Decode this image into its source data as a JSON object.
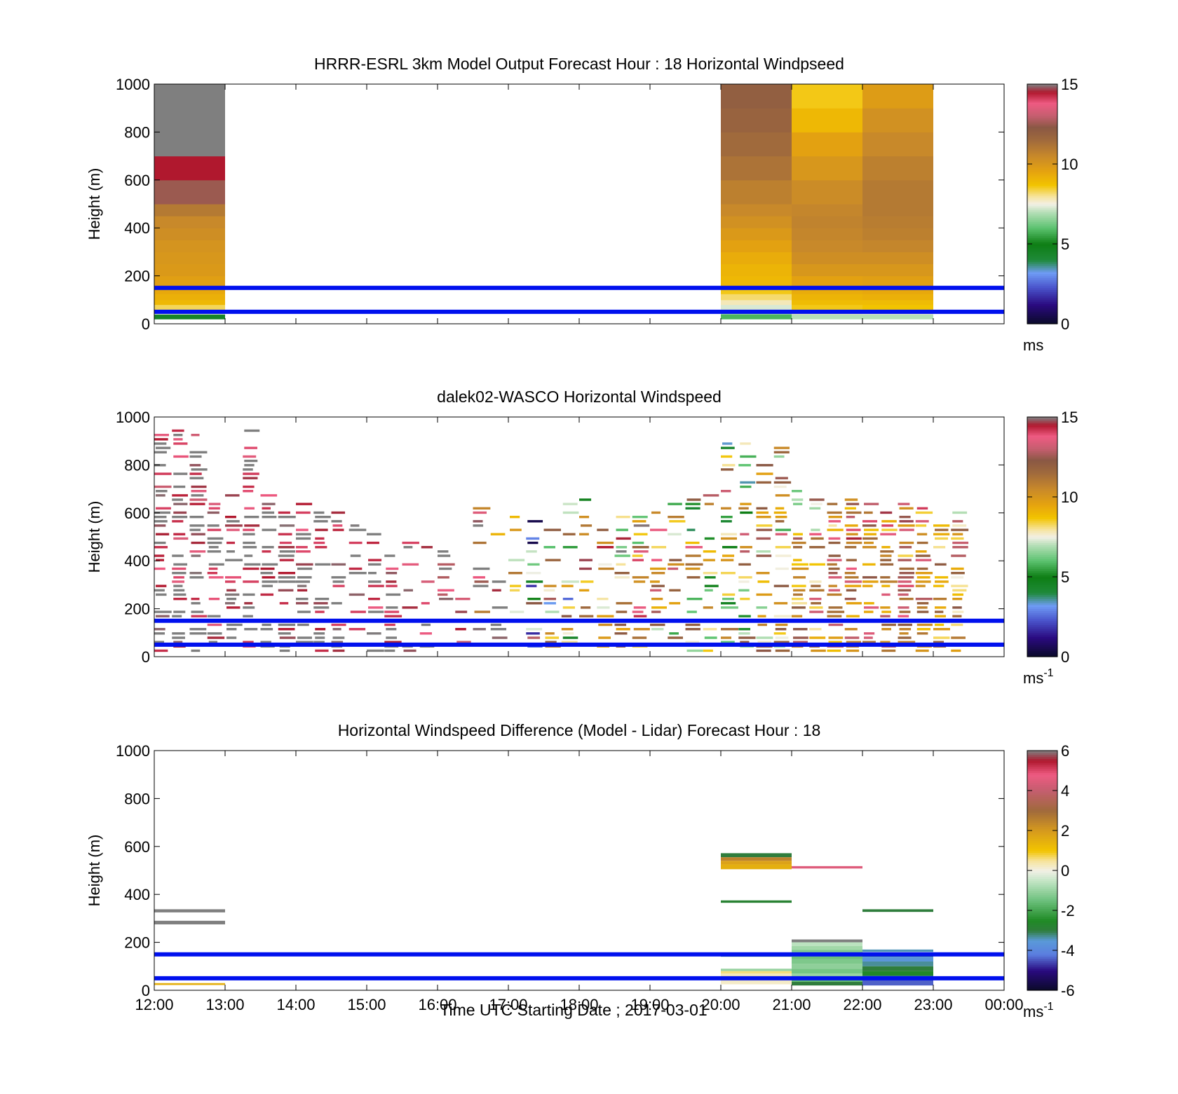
{
  "figure": {
    "xlabel": "Time UTC  Starting Date ; 2017-03-01",
    "x_tick_labels": [
      "12:00",
      "13:00",
      "14:00",
      "15:00",
      "16:00",
      "17:00",
      "18:00",
      "19:00",
      "20:00",
      "21:00",
      "22:00",
      "23:00",
      "00:00"
    ],
    "ylabel": "Height (m)",
    "y_tick_labels": [
      "0",
      "200",
      "400",
      "600",
      "800",
      "1000"
    ]
  },
  "chart_data": [
    {
      "type": "heatmap",
      "title": "HRRR-ESRL 3km Model Output   Forecast Hour : 18 Horizontal Windpseed",
      "ylabel": "Height (m)",
      "xlim": [
        0,
        12
      ],
      "ylim": [
        0,
        1000
      ],
      "colorbar": {
        "min": 0,
        "max": 15,
        "ticks": [
          "0",
          "5",
          "10",
          "15"
        ],
        "unit": "ms",
        "unit_sup": ""
      },
      "reference_lines": [
        {
          "height": 150,
          "color": "#0010ee"
        },
        {
          "height": 50,
          "color": "#0010ee"
        }
      ],
      "columns": [
        {
          "x0": 0,
          "x1": 1,
          "cells": [
            [
              20,
              40,
              4.5
            ],
            [
              40,
              60,
              7.5
            ],
            [
              60,
              80,
              8.3
            ],
            [
              80,
              100,
              9.0
            ],
            [
              100,
              125,
              9.2
            ],
            [
              125,
              150,
              9.4
            ],
            [
              150,
              200,
              9.7
            ],
            [
              200,
              250,
              9.9
            ],
            [
              250,
              300,
              10.0
            ],
            [
              300,
              350,
              10.1
            ],
            [
              350,
              400,
              10.3
            ],
            [
              400,
              450,
              10.5
            ],
            [
              450,
              500,
              11.0
            ],
            [
              500,
              600,
              12.5
            ],
            [
              600,
              700,
              14.5
            ],
            [
              700,
              1000,
              15.0
            ]
          ]
        },
        {
          "x0": 8,
          "x1": 9,
          "cells": [
            [
              20,
              40,
              5.8
            ],
            [
              40,
              60,
              6.8
            ],
            [
              60,
              80,
              7.3
            ],
            [
              80,
              100,
              7.8
            ],
            [
              100,
              125,
              8.2
            ],
            [
              125,
              150,
              8.6
            ],
            [
              150,
              200,
              9.0
            ],
            [
              200,
              250,
              9.1
            ],
            [
              250,
              300,
              9.3
            ],
            [
              300,
              350,
              9.6
            ],
            [
              350,
              400,
              9.9
            ],
            [
              400,
              450,
              10.2
            ],
            [
              450,
              500,
              10.5
            ],
            [
              500,
              600,
              10.8
            ],
            [
              600,
              700,
              11.2
            ],
            [
              700,
              800,
              11.5
            ],
            [
              800,
              900,
              11.8
            ],
            [
              900,
              1000,
              12.0
            ]
          ]
        },
        {
          "x0": 9,
          "x1": 10,
          "cells": [
            [
              20,
              40,
              7.0
            ],
            [
              40,
              60,
              7.7
            ],
            [
              60,
              80,
              8.6
            ],
            [
              80,
              100,
              8.9
            ],
            [
              100,
              125,
              9.1
            ],
            [
              125,
              150,
              9.3
            ],
            [
              150,
              200,
              9.6
            ],
            [
              200,
              250,
              10.0
            ],
            [
              250,
              300,
              10.3
            ],
            [
              300,
              350,
              10.5
            ],
            [
              350,
              400,
              10.6
            ],
            [
              400,
              450,
              10.7
            ],
            [
              450,
              500,
              10.6
            ],
            [
              500,
              600,
              10.4
            ],
            [
              600,
              700,
              10.0
            ],
            [
              700,
              800,
              9.6
            ],
            [
              800,
              900,
              9.0
            ],
            [
              900,
              1000,
              8.6
            ]
          ]
        },
        {
          "x0": 10,
          "x1": 11,
          "cells": [
            [
              20,
              40,
              7.0
            ],
            [
              40,
              60,
              7.6
            ],
            [
              60,
              80,
              8.7
            ],
            [
              80,
              100,
              8.9
            ],
            [
              100,
              125,
              9.2
            ],
            [
              125,
              150,
              9.4
            ],
            [
              150,
              200,
              9.7
            ],
            [
              200,
              250,
              10.0
            ],
            [
              250,
              300,
              10.3
            ],
            [
              300,
              350,
              10.6
            ],
            [
              350,
              400,
              10.8
            ],
            [
              400,
              450,
              10.9
            ],
            [
              450,
              500,
              11.0
            ],
            [
              500,
              600,
              11.0
            ],
            [
              600,
              700,
              10.8
            ],
            [
              700,
              800,
              10.5
            ],
            [
              800,
              900,
              10.2
            ],
            [
              900,
              1000,
              9.8
            ]
          ]
        }
      ]
    },
    {
      "type": "heatmap",
      "title": "dalek02-WASCO  Horizontal Windspeed",
      "ylabel": "Height (m)",
      "xlim": [
        0,
        12
      ],
      "ylim": [
        0,
        1000
      ],
      "colorbar": {
        "min": 0,
        "max": 15,
        "ticks": [
          "0",
          "5",
          "10",
          "15"
        ],
        "unit": "ms",
        "unit_sup": "-1"
      },
      "reference_lines": [
        {
          "height": 150,
          "color": "#0010ee"
        },
        {
          "height": 50,
          "color": "#0010ee"
        }
      ],
      "lidar_time_step": 0.25,
      "lidar_gate_height": 18,
      "lidar_columns": [
        {
          "coverage": 0.62,
          "top": 960,
          "speed": 15.0,
          "spread": 1.5
        },
        {
          "coverage": 0.58,
          "top": 950,
          "speed": 15.0,
          "spread": 1.5
        },
        {
          "coverage": 0.55,
          "top": 930,
          "speed": 15.0,
          "spread": 1.5
        },
        {
          "coverage": 0.52,
          "top": 640,
          "speed": 15.0,
          "spread": 1.5
        },
        {
          "coverage": 0.5,
          "top": 680,
          "speed": 15.0,
          "spread": 1.2
        },
        {
          "coverage": 0.5,
          "top": 990,
          "speed": 15.0,
          "spread": 1.2
        },
        {
          "coverage": 0.52,
          "top": 690,
          "speed": 15.0,
          "spread": 1.0
        },
        {
          "coverage": 0.52,
          "top": 680,
          "speed": 15.0,
          "spread": 1.0
        },
        {
          "coverage": 0.5,
          "top": 660,
          "speed": 15.0,
          "spread": 1.0
        },
        {
          "coverage": 0.48,
          "top": 640,
          "speed": 15.0,
          "spread": 1.0
        },
        {
          "coverage": 0.45,
          "top": 600,
          "speed": 15.0,
          "spread": 1.0
        },
        {
          "coverage": 0.42,
          "top": 560,
          "speed": 15.0,
          "spread": 1.0
        },
        {
          "coverage": 0.4,
          "top": 520,
          "speed": 15.0,
          "spread": 1.5
        },
        {
          "coverage": 0.38,
          "top": 500,
          "speed": 15.0,
          "spread": 1.5
        },
        {
          "coverage": 0.36,
          "top": 480,
          "speed": 15.0,
          "spread": 1.5
        },
        {
          "coverage": 0.35,
          "top": 460,
          "speed": 15.0,
          "spread": 2.0
        },
        {
          "coverage": 0.35,
          "top": 450,
          "speed": 14.5,
          "spread": 2.0
        },
        {
          "coverage": 0.34,
          "top": 440,
          "speed": 14.0,
          "spread": 2.5
        },
        {
          "coverage": 0.32,
          "top": 620,
          "speed": 13.5,
          "spread": 3.0
        },
        {
          "coverage": 0.32,
          "top": 600,
          "speed": 13.0,
          "spread": 3.5
        },
        {
          "coverage": 0.34,
          "top": 620,
          "speed": 8.0,
          "spread": 6.0
        },
        {
          "coverage": 0.34,
          "top": 640,
          "speed": 7.0,
          "spread": 6.0
        },
        {
          "coverage": 0.35,
          "top": 660,
          "speed": 7.0,
          "spread": 6.0
        },
        {
          "coverage": 0.36,
          "top": 660,
          "speed": 8.0,
          "spread": 6.0
        },
        {
          "coverage": 0.36,
          "top": 660,
          "speed": 10.0,
          "spread": 5.0
        },
        {
          "coverage": 0.36,
          "top": 640,
          "speed": 11.0,
          "spread": 4.0
        },
        {
          "coverage": 0.36,
          "top": 620,
          "speed": 11.0,
          "spread": 4.0
        },
        {
          "coverage": 0.38,
          "top": 600,
          "speed": 11.0,
          "spread": 4.0
        },
        {
          "coverage": 0.4,
          "top": 600,
          "speed": 10.5,
          "spread": 4.0
        },
        {
          "coverage": 0.4,
          "top": 640,
          "speed": 9.5,
          "spread": 4.0
        },
        {
          "coverage": 0.42,
          "top": 660,
          "speed": 9.0,
          "spread": 4.0
        },
        {
          "coverage": 0.44,
          "top": 680,
          "speed": 8.5,
          "spread": 4.0
        },
        {
          "coverage": 0.45,
          "top": 900,
          "speed": 8.5,
          "spread": 4.0
        },
        {
          "coverage": 0.48,
          "top": 900,
          "speed": 8.5,
          "spread": 4.0
        },
        {
          "coverage": 0.5,
          "top": 860,
          "speed": 9.0,
          "spread": 3.5
        },
        {
          "coverage": 0.52,
          "top": 900,
          "speed": 9.0,
          "spread": 3.5
        },
        {
          "coverage": 0.55,
          "top": 700,
          "speed": 10.0,
          "spread": 3.0
        },
        {
          "coverage": 0.58,
          "top": 680,
          "speed": 10.5,
          "spread": 3.0
        },
        {
          "coverage": 0.62,
          "top": 660,
          "speed": 11.0,
          "spread": 2.5
        },
        {
          "coverage": 0.65,
          "top": 660,
          "speed": 11.5,
          "spread": 2.5
        },
        {
          "coverage": 0.68,
          "top": 660,
          "speed": 11.5,
          "spread": 2.5
        },
        {
          "coverage": 0.7,
          "top": 660,
          "speed": 11.5,
          "spread": 2.5
        },
        {
          "coverage": 0.72,
          "top": 640,
          "speed": 11.5,
          "spread": 2.5
        },
        {
          "coverage": 0.72,
          "top": 620,
          "speed": 11.0,
          "spread": 2.5
        },
        {
          "coverage": 0.7,
          "top": 600,
          "speed": 10.5,
          "spread": 2.5
        },
        {
          "coverage": 0.68,
          "top": 600,
          "speed": 10.0,
          "spread": 2.5
        }
      ]
    },
    {
      "type": "heatmap",
      "title": "Horizontal Windspeed Difference (Model - Lidar) Forecast Hour : 18",
      "ylabel": "Height (m)",
      "xlim": [
        0,
        12
      ],
      "ylim": [
        0,
        1000
      ],
      "colorbar": {
        "min": -6,
        "max": 6,
        "ticks": [
          "-6",
          "-4",
          "-2",
          "0",
          "2",
          "4",
          "6"
        ],
        "unit": "ms",
        "unit_sup": "-1"
      },
      "reference_lines": [
        {
          "height": 150,
          "color": "#0010ee"
        },
        {
          "height": 50,
          "color": "#0010ee"
        }
      ],
      "segments": [
        {
          "x0": 0,
          "x1": 1,
          "y0": 325,
          "y1": 338,
          "value": 6.0
        },
        {
          "x0": 0,
          "x1": 1,
          "y0": 275,
          "y1": 290,
          "value": 6.0
        },
        {
          "x0": 0,
          "x1": 1,
          "y0": 22,
          "y1": 30,
          "value": 1.5
        },
        {
          "x0": 8,
          "x1": 9,
          "y0": 555,
          "y1": 572,
          "value": -3.0
        },
        {
          "x0": 8,
          "x1": 9,
          "y0": 540,
          "y1": 555,
          "value": 2.5
        },
        {
          "x0": 8,
          "x1": 9,
          "y0": 525,
          "y1": 540,
          "value": 1.8
        },
        {
          "x0": 8,
          "x1": 9,
          "y0": 505,
          "y1": 525,
          "value": 1.5
        },
        {
          "x0": 8,
          "x1": 9,
          "y0": 365,
          "y1": 375,
          "value": -2.8
        },
        {
          "x0": 8,
          "x1": 9,
          "y0": 140,
          "y1": 150,
          "value": -3.2
        },
        {
          "x0": 8,
          "x1": 9,
          "y0": 80,
          "y1": 90,
          "value": -1.0
        },
        {
          "x0": 8,
          "x1": 9,
          "y0": 70,
          "y1": 80,
          "value": 0.6
        },
        {
          "x0": 8,
          "x1": 9,
          "y0": 55,
          "y1": 70,
          "value": 0.3
        },
        {
          "x0": 8,
          "x1": 9,
          "y0": 40,
          "y1": 55,
          "value": 0.4
        },
        {
          "x0": 8,
          "x1": 9,
          "y0": 25,
          "y1": 40,
          "value": 0.2
        },
        {
          "x0": 9,
          "x1": 10,
          "y0": 508,
          "y1": 518,
          "value": 4.5
        },
        {
          "x0": 9,
          "x1": 10,
          "y0": 200,
          "y1": 212,
          "value": 6.0
        },
        {
          "x0": 9,
          "x1": 10,
          "y0": 185,
          "y1": 200,
          "value": -0.6
        },
        {
          "x0": 9,
          "x1": 10,
          "y0": 170,
          "y1": 185,
          "value": -0.9
        },
        {
          "x0": 9,
          "x1": 10,
          "y0": 150,
          "y1": 170,
          "value": -1.2
        },
        {
          "x0": 9,
          "x1": 10,
          "y0": 130,
          "y1": 150,
          "value": -1.5
        },
        {
          "x0": 9,
          "x1": 10,
          "y0": 110,
          "y1": 130,
          "value": -1.3
        },
        {
          "x0": 9,
          "x1": 10,
          "y0": 90,
          "y1": 110,
          "value": -1.1
        },
        {
          "x0": 9,
          "x1": 10,
          "y0": 70,
          "y1": 90,
          "value": -1.4
        },
        {
          "x0": 9,
          "x1": 10,
          "y0": 50,
          "y1": 70,
          "value": -1.0
        },
        {
          "x0": 9,
          "x1": 10,
          "y0": 35,
          "y1": 50,
          "value": -1.6
        },
        {
          "x0": 9,
          "x1": 10,
          "y0": 20,
          "y1": 35,
          "value": -3.0
        },
        {
          "x0": 10,
          "x1": 11,
          "y0": 327,
          "y1": 338,
          "value": -3.0
        },
        {
          "x0": 10,
          "x1": 11,
          "y0": 160,
          "y1": 170,
          "value": -3.4
        },
        {
          "x0": 10,
          "x1": 11,
          "y0": 140,
          "y1": 150,
          "value": -3.0
        },
        {
          "x0": 10,
          "x1": 11,
          "y0": 120,
          "y1": 140,
          "value": -3.6
        },
        {
          "x0": 10,
          "x1": 11,
          "y0": 100,
          "y1": 120,
          "value": -3.3
        },
        {
          "x0": 10,
          "x1": 11,
          "y0": 80,
          "y1": 100,
          "value": -3.0
        },
        {
          "x0": 10,
          "x1": 11,
          "y0": 60,
          "y1": 80,
          "value": -2.6
        },
        {
          "x0": 10,
          "x1": 11,
          "y0": 45,
          "y1": 60,
          "value": -4.2
        },
        {
          "x0": 10,
          "x1": 11,
          "y0": 20,
          "y1": 45,
          "value": -4.4
        }
      ]
    }
  ]
}
